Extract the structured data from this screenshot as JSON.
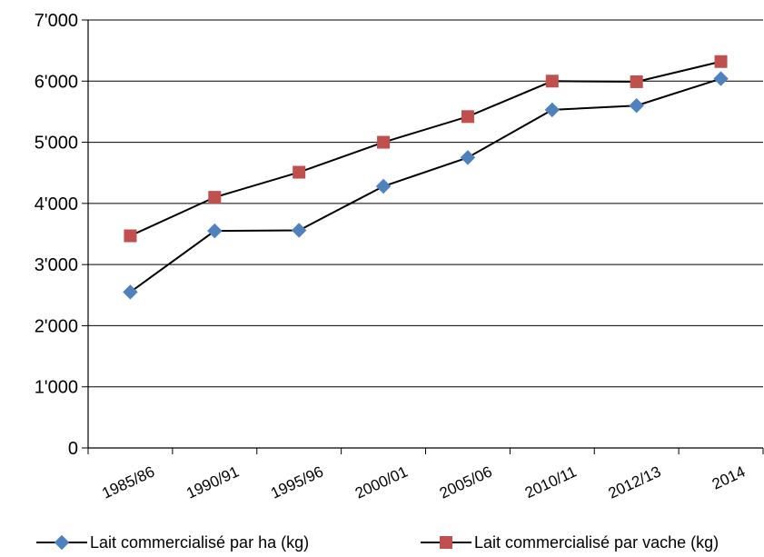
{
  "chart_data": {
    "type": "line",
    "categories": [
      "1985/86",
      "1990/91",
      "1995/96",
      "2000/01",
      "2005/06",
      "2010/11",
      "2012/13",
      "2014"
    ],
    "series": [
      {
        "name": "Lait commercialisé par ha (kg)",
        "values": [
          2550,
          3550,
          3560,
          4280,
          4750,
          5530,
          5600,
          6040
        ],
        "marker": "diamond",
        "marker_color": "#4F81BD"
      },
      {
        "name": "Lait commercialisé par vache (kg)",
        "values": [
          3470,
          4100,
          4510,
          5000,
          5420,
          6000,
          5990,
          6320
        ],
        "marker": "square",
        "marker_color": "#C0504D"
      }
    ],
    "line_color": "#000000",
    "ylim": [
      0,
      7000
    ],
    "yticks": [
      0,
      1000,
      2000,
      3000,
      4000,
      5000,
      6000,
      7000
    ],
    "ytick_labels": [
      "0",
      "1'000",
      "2'000",
      "3'000",
      "4'000",
      "5'000",
      "6'000",
      "7'000"
    ],
    "grid": true,
    "legend_position": "bottom",
    "title": "",
    "xlabel": "",
    "ylabel": ""
  }
}
